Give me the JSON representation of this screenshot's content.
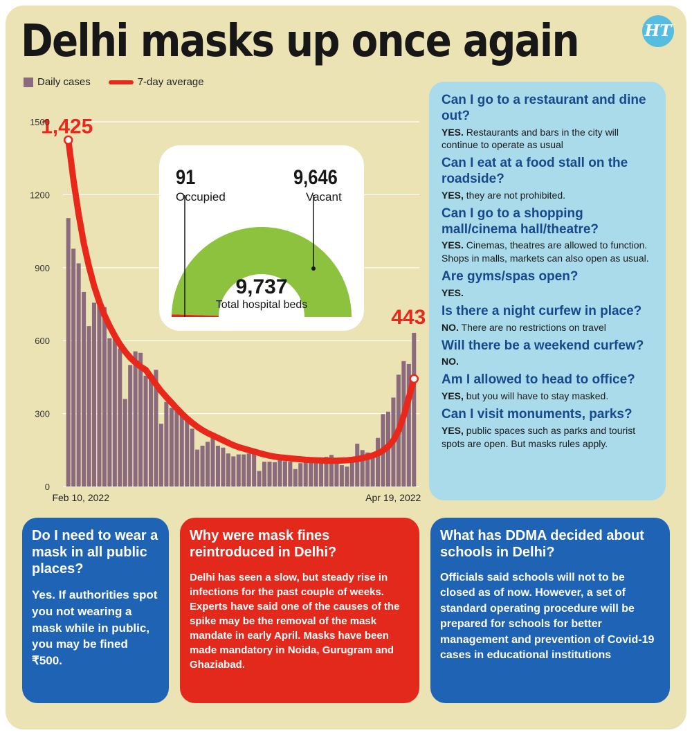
{
  "title": "Delhi masks up once again",
  "logo_text": "HT",
  "legend": {
    "bars": "Daily cases",
    "line": "7-day average"
  },
  "colors": {
    "bar": "#8c6a7e",
    "line": "#e8281a",
    "gauge_vacant": "#8dc23f",
    "gauge_occupied": "#e8281a",
    "faq_bg": "#a9dbea",
    "faq_q": "#17488c",
    "box_blue": "#1f63b4",
    "box_red": "#e3281c"
  },
  "chart_data": {
    "type": "bar",
    "x_start_label": "Feb 10, 2022",
    "x_end_label": "Apr 19, 2022",
    "ylim": [
      0,
      1500
    ],
    "yticks": [
      0,
      300,
      600,
      900,
      1200,
      1500
    ],
    "grid": true,
    "series": [
      {
        "name": "Daily cases",
        "type": "bar",
        "values": [
          1104,
          978,
          918,
          800,
          660,
          756,
          766,
          738,
          610,
          632,
          568,
          360,
          500,
          556,
          550,
          456,
          440,
          480,
          258,
          348,
          324,
          324,
          300,
          276,
          238,
          152,
          168,
          184,
          214,
          168,
          160,
          136,
          124,
          132,
          132,
          136,
          142,
          64,
          102,
          102,
          100,
          108,
          104,
          102,
          72,
          96,
          112,
          116,
          112,
          120,
          122,
          130,
          104,
          88,
          82,
          102,
          176,
          150,
          140,
          138,
          200,
          298,
          308,
          366,
          460,
          516,
          504,
          632
        ]
      },
      {
        "name": "7-day average",
        "type": "line",
        "values": [
          1425,
          1260,
          1120,
          1000,
          905,
          825,
          760,
          705,
          660,
          620,
          585,
          555,
          530,
          510,
          493,
          480,
          450,
          420,
          392,
          368,
          345,
          322,
          300,
          280,
          262,
          246,
          232,
          220,
          210,
          200,
          190,
          180,
          170,
          162,
          156,
          150,
          144,
          138,
          132,
          127,
          123,
          120,
          118,
          116,
          114,
          112,
          110,
          109,
          108,
          107,
          106,
          106,
          106,
          107,
          108,
          110,
          113,
          117,
          122,
          128,
          136,
          148,
          165,
          190,
          230,
          290,
          365,
          443
        ]
      }
    ],
    "annotations": {
      "start": "1,425",
      "end": "443"
    }
  },
  "hospital": {
    "occupied_value": "91",
    "occupied_label": "Occupied",
    "vacant_value": "9,646",
    "vacant_label": "Vacant",
    "total_value": "9,737",
    "total_label": "Total hospital beds",
    "occupied_fraction": 0.0093
  },
  "faq": [
    {
      "q": "Can I go to a restaurant and dine out?",
      "a_lead": "YES.",
      "a_rest": " Restaurants and bars in the city will continue to operate as usual"
    },
    {
      "q": "Can I eat at a food stall on the roadside?",
      "a_lead": "YES,",
      "a_rest": " they are not prohibited."
    },
    {
      "q": "Can I go to a shopping mall/cinema hall/theatre?",
      "a_lead": "YES.",
      "a_rest": " Cinemas, theatres are allowed to function. Shops in malls, markets can also open as usual."
    },
    {
      "q": "Are gyms/spas open?",
      "a_lead": "YES.",
      "a_rest": ""
    },
    {
      "q": "Is there a night curfew in place?",
      "a_lead": "NO.",
      "a_rest": " There are no restrictions on travel"
    },
    {
      "q": "Will there be a weekend curfew?",
      "a_lead": "NO.",
      "a_rest": ""
    },
    {
      "q": "Am I allowed to head to office?",
      "a_lead": "YES,",
      "a_rest": " but you will have to stay masked."
    },
    {
      "q": "Can I visit monuments, parks?",
      "a_lead": "YES,",
      "a_rest": " public spaces such as parks and tourist spots are open. But masks rules apply."
    }
  ],
  "boxes": [
    {
      "q": "Do I need to wear a mask in all public places?",
      "a": "Yes. If authorities spot you not wearing a mask while in public, you may be fined ₹500."
    },
    {
      "q": "Why were mask fines reintroduced in Delhi?",
      "a": "Delhi has seen a slow, but steady rise in infections for the past couple of weeks. Experts have said one of the causes of the spike may be the removal of the mask mandate in early April. Masks have been made mandatory in Noida, Gurugram and Ghaziabad."
    },
    {
      "q": "What has DDMA decided about schools in Delhi?",
      "a": "Officials said schools will not to be closed as of now. However, a set of standard operating procedure will be prepared for schools for better management and prevention of Covid-19 cases in educational institutions"
    }
  ]
}
